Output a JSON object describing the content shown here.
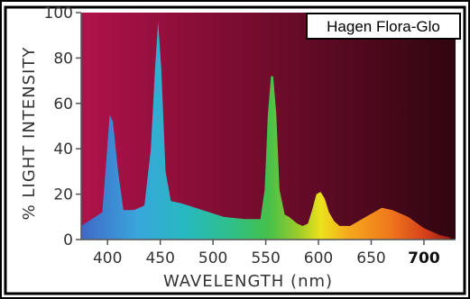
{
  "chart_data": {
    "type": "area",
    "title": "",
    "legend": {
      "label": "Hagen Flora-Glo",
      "placement": "top-right"
    },
    "xlabel": "WAVELENGTH (nm)",
    "ylabel": "% LIGHT INTENSITY",
    "xlim": [
      375,
      730
    ],
    "ylim": [
      0,
      100
    ],
    "x_ticks": [
      400,
      450,
      500,
      550,
      600,
      650,
      700
    ],
    "x_tick_labels": [
      "400",
      "450",
      "500",
      "550",
      "600",
      "650",
      "700"
    ],
    "y_ticks": [
      0,
      20,
      40,
      60,
      80,
      100
    ],
    "y_tick_labels": [
      "0",
      "20",
      "40",
      "60",
      "80",
      "100"
    ],
    "background_gradient": [
      "#b0124a",
      "#30060f"
    ],
    "spectrum": {
      "x": [
        375,
        385,
        395,
        398,
        402,
        405,
        410,
        415,
        425,
        435,
        441,
        445,
        448,
        451,
        455,
        460,
        470,
        490,
        510,
        530,
        545,
        549,
        552,
        555,
        557,
        560,
        563,
        568,
        572,
        580,
        585,
        590,
        594,
        598,
        602,
        606,
        610,
        615,
        620,
        630,
        645,
        660,
        670,
        685,
        700,
        715,
        725
      ],
      "y": [
        6,
        9,
        12,
        30,
        55,
        52,
        30,
        13,
        13,
        15,
        40,
        75,
        96,
        75,
        30,
        17,
        16,
        13,
        10,
        9,
        9,
        22,
        55,
        72,
        72,
        55,
        22,
        11,
        10,
        7,
        6,
        7,
        13,
        20,
        21,
        18,
        12,
        8,
        6,
        6,
        10,
        14,
        13,
        10,
        5,
        2,
        1
      ]
    }
  }
}
